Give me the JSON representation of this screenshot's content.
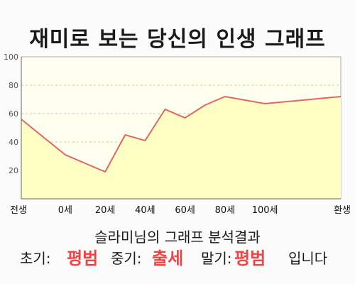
{
  "title": "재미로 보는 당신의 인생 그래프",
  "chart_data": {
    "type": "area",
    "x_categories": [
      "전생",
      "0세",
      "20세",
      "40세",
      "60세",
      "80세",
      "100세",
      "환생"
    ],
    "points": [
      {
        "x": "전생",
        "y": 56
      },
      {
        "x": "0세",
        "y": 31
      },
      {
        "x": "20세",
        "y": 19
      },
      {
        "x": "30세",
        "y": 45
      },
      {
        "x": "40세",
        "y": 41
      },
      {
        "x": "50세",
        "y": 63
      },
      {
        "x": "60세",
        "y": 57
      },
      {
        "x": "70세",
        "y": 66
      },
      {
        "x": "80세",
        "y": 72
      },
      {
        "x": "100세",
        "y": 67
      },
      {
        "x": "환생",
        "y": 72
      }
    ],
    "y_ticks": [
      20,
      40,
      60,
      80,
      100
    ],
    "ylim": [
      0,
      100
    ],
    "grid": true,
    "line_color": "#e06666",
    "fill_color": "#ffffc4",
    "bg_color": "#fffff0"
  },
  "result": {
    "heading": "슬라미님의 그래프 분석결과",
    "early_label": "초기:",
    "early_value": "평범",
    "middle_label": "중기:",
    "middle_value": "출세",
    "late_label": "말기:",
    "late_value": "평범",
    "suffix": "입니다"
  }
}
